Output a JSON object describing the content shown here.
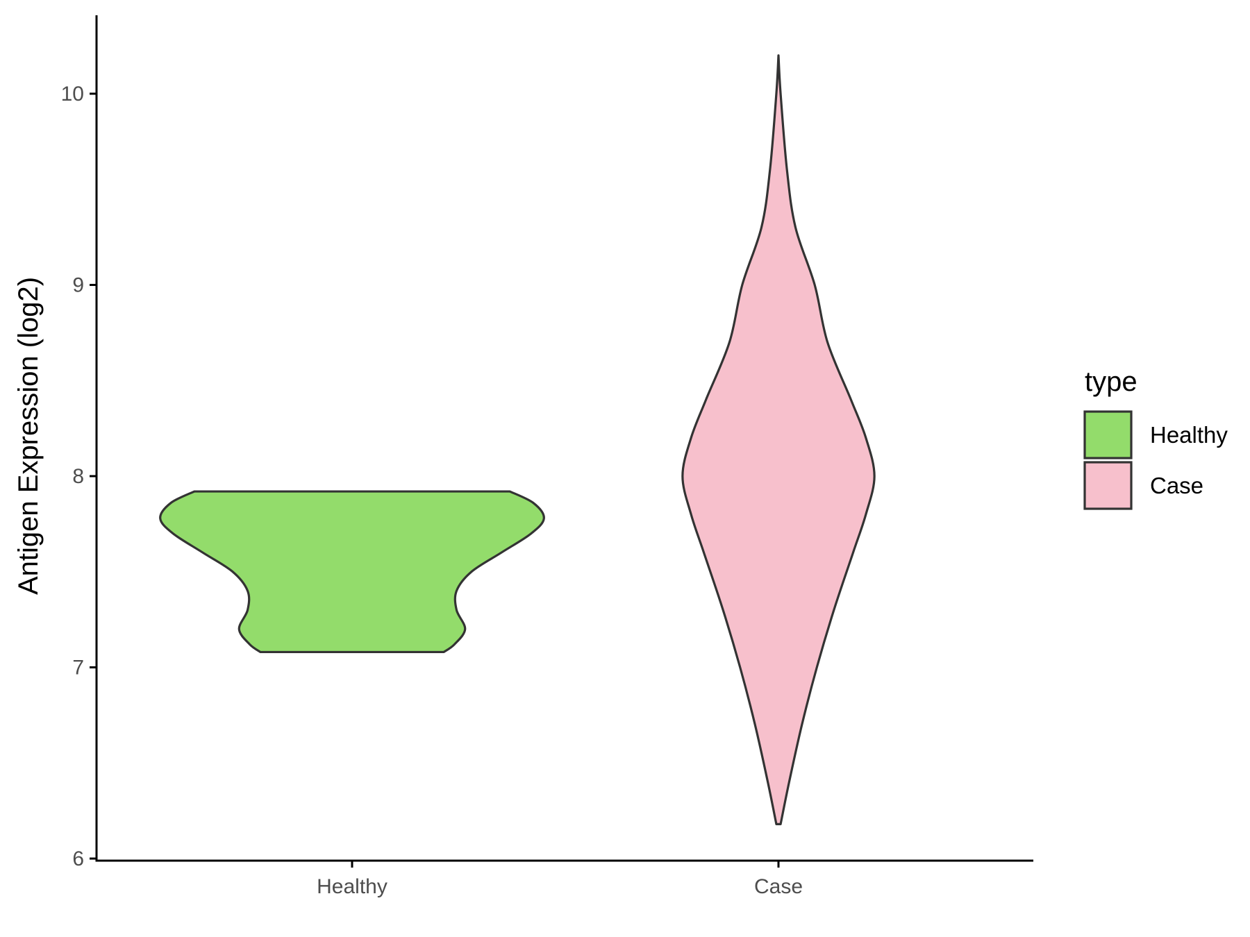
{
  "chart_data": {
    "type": "violin",
    "title": "",
    "xlabel": "",
    "ylabel": "Antigen Expression (log2)",
    "ylim": [
      6,
      10.4
    ],
    "yticks": [
      6,
      7,
      8,
      9,
      10
    ],
    "categories": [
      "Healthy",
      "Case"
    ],
    "grid": false,
    "legend": {
      "title": "type",
      "position": "right",
      "entries": [
        {
          "label": "Healthy",
          "color": "#93dc6b"
        },
        {
          "label": "Case",
          "color": "#f7c0cc"
        }
      ]
    },
    "series": [
      {
        "category": "Healthy",
        "color": "#93dc6b",
        "min": 7.08,
        "max": 7.92,
        "density_profile": [
          {
            "y": 7.08,
            "half_width": 0.43
          },
          {
            "y": 7.12,
            "half_width": 0.48
          },
          {
            "y": 7.2,
            "half_width": 0.53
          },
          {
            "y": 7.3,
            "half_width": 0.49
          },
          {
            "y": 7.4,
            "half_width": 0.49
          },
          {
            "y": 7.5,
            "half_width": 0.56
          },
          {
            "y": 7.6,
            "half_width": 0.7
          },
          {
            "y": 7.7,
            "half_width": 0.84
          },
          {
            "y": 7.78,
            "half_width": 0.9
          },
          {
            "y": 7.86,
            "half_width": 0.85
          },
          {
            "y": 7.92,
            "half_width": 0.74
          }
        ]
      },
      {
        "category": "Case",
        "color": "#f7c0cc",
        "min": 6.18,
        "max": 10.2,
        "density_profile": [
          {
            "y": 6.18,
            "half_width": 0.01
          },
          {
            "y": 6.4,
            "half_width": 0.05
          },
          {
            "y": 6.7,
            "half_width": 0.11
          },
          {
            "y": 7.0,
            "half_width": 0.18
          },
          {
            "y": 7.3,
            "half_width": 0.26
          },
          {
            "y": 7.6,
            "half_width": 0.35
          },
          {
            "y": 7.8,
            "half_width": 0.41
          },
          {
            "y": 8.0,
            "half_width": 0.45
          },
          {
            "y": 8.2,
            "half_width": 0.41
          },
          {
            "y": 8.4,
            "half_width": 0.34
          },
          {
            "y": 8.7,
            "half_width": 0.23
          },
          {
            "y": 9.0,
            "half_width": 0.17
          },
          {
            "y": 9.3,
            "half_width": 0.08
          },
          {
            "y": 9.6,
            "half_width": 0.04
          },
          {
            "y": 10.0,
            "half_width": 0.01
          },
          {
            "y": 10.2,
            "half_width": 0.0
          }
        ]
      }
    ],
    "line_color": "#333333"
  }
}
